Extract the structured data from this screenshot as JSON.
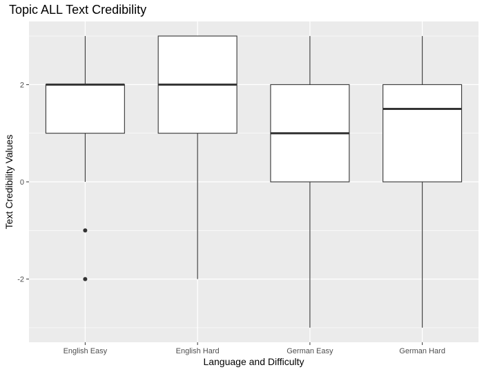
{
  "chart_data": {
    "type": "boxplot",
    "title": "Topic ALL Text Credibility",
    "xlabel": "Language and Difficulty",
    "ylabel": "Text Credibility Values",
    "categories": [
      "English Easy",
      "English Hard",
      "German Easy",
      "German Hard"
    ],
    "ylim": [
      -3.3,
      3.3
    ],
    "yticks": [
      -2,
      0,
      2
    ],
    "ytick_labels": [
      "-2",
      "0",
      "2"
    ],
    "grid": true,
    "boxes": [
      {
        "category": "English Easy",
        "whisker_low": 0,
        "q1": 1,
        "median": 2,
        "q3": 2,
        "whisker_high": 3,
        "outliers": [
          -1,
          -2
        ]
      },
      {
        "category": "English Hard",
        "whisker_low": -2,
        "q1": 1,
        "median": 2,
        "q3": 3,
        "whisker_high": 3,
        "outliers": []
      },
      {
        "category": "German Easy",
        "whisker_low": -3,
        "q1": 0,
        "median": 1,
        "q3": 2,
        "whisker_high": 3,
        "outliers": []
      },
      {
        "category": "German Hard",
        "whisker_low": -3,
        "q1": 0,
        "median": 1.5,
        "q3": 2,
        "whisker_high": 3,
        "outliers": []
      }
    ],
    "colors": {
      "panel": "#ebebeb",
      "grid_major": "#ffffff",
      "box_fill": "#ffffff",
      "box_stroke": "#333333",
      "outlier": "#333333"
    }
  }
}
